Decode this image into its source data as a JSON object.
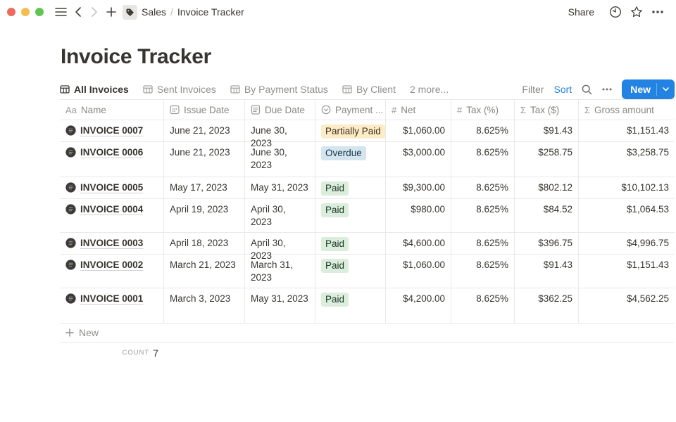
{
  "topbar": {
    "breadcrumb_section": "Sales",
    "breadcrumb_separator": "/",
    "breadcrumb_page": "Invoice Tracker",
    "share_label": "Share"
  },
  "page": {
    "title": "Invoice Tracker"
  },
  "views": {
    "tabs": [
      {
        "label": "All Invoices",
        "active": true
      },
      {
        "label": "Sent Invoices",
        "active": false
      },
      {
        "label": "By Payment Status",
        "active": false
      },
      {
        "label": "By Client",
        "active": false
      }
    ],
    "more_label": "2 more..."
  },
  "actions": {
    "filter_label": "Filter",
    "sort_label": "Sort",
    "more_icon": "ellipsis-icon",
    "search_icon": "search-icon",
    "new_button_label": "New"
  },
  "table": {
    "columns": [
      {
        "id": "name",
        "label": "Name",
        "icon": "text-icon"
      },
      {
        "id": "issue-date",
        "label": "Issue Date",
        "icon": "calendar-icon"
      },
      {
        "id": "due-date",
        "label": "Due Date",
        "icon": "document-icon"
      },
      {
        "id": "payment-status",
        "label": "Payment ...",
        "icon": "select-icon"
      },
      {
        "id": "net",
        "label": "Net",
        "icon": "hash-icon",
        "align": "right"
      },
      {
        "id": "tax-pct",
        "label": "Tax (%)",
        "icon": "hash-icon",
        "align": "right"
      },
      {
        "id": "tax-usd",
        "label": "Tax ($)",
        "icon": "sum-icon",
        "align": "right"
      },
      {
        "id": "gross",
        "label": "Gross amount",
        "icon": "sum-icon",
        "align": "right"
      }
    ],
    "rows": [
      {
        "name": "INVOICE 0007",
        "issue_date": "June 21, 2023",
        "due_date": "June 30, 2023",
        "payment_status": "Partially Paid",
        "status_color": "yellow",
        "net": "$1,060.00",
        "tax_pct": "8.625%",
        "tax_usd": "$91.43",
        "gross": "$1,151.43"
      },
      {
        "name": "INVOICE 0006",
        "issue_date": "June 21, 2023",
        "due_date": "June 30, 2023",
        "payment_status": "Overdue",
        "status_color": "blue",
        "net": "$3,000.00",
        "tax_pct": "8.625%",
        "tax_usd": "$258.75",
        "gross": "$3,258.75"
      },
      {
        "name": "INVOICE 0005",
        "issue_date": "May 17, 2023",
        "due_date": "May 31, 2023",
        "payment_status": "Paid",
        "status_color": "green",
        "net": "$9,300.00",
        "tax_pct": "8.625%",
        "tax_usd": "$802.12",
        "gross": "$10,102.13"
      },
      {
        "name": "INVOICE 0004",
        "issue_date": "April 19, 2023",
        "due_date": "April 30, 2023",
        "payment_status": "Paid",
        "status_color": "green",
        "net": "$980.00",
        "tax_pct": "8.625%",
        "tax_usd": "$84.52",
        "gross": "$1,064.53"
      },
      {
        "name": "INVOICE 0003",
        "issue_date": "April 18, 2023",
        "due_date": "April 30, 2023",
        "payment_status": "Paid",
        "status_color": "green",
        "net": "$4,600.00",
        "tax_pct": "8.625%",
        "tax_usd": "$396.75",
        "gross": "$4,996.75"
      },
      {
        "name": "INVOICE 0002",
        "issue_date": "March 21, 2023",
        "due_date": "March 31, 2023",
        "payment_status": "Paid",
        "status_color": "green",
        "net": "$1,060.00",
        "tax_pct": "8.625%",
        "tax_usd": "$91.43",
        "gross": "$1,151.43"
      },
      {
        "name": "INVOICE 0001",
        "issue_date": "March 3, 2023",
        "due_date": "May 31, 2023",
        "payment_status": "Paid",
        "status_color": "green",
        "net": "$4,200.00",
        "tax_pct": "8.625%",
        "tax_usd": "$362.25",
        "gross": "$4,562.25"
      }
    ],
    "new_row_label": "New",
    "count_label": "count",
    "count_value": "7"
  },
  "colors": {
    "accent_blue": "#2383e2",
    "badge_yellow_bg": "#fdecc8",
    "badge_blue_bg": "#d3e5ef",
    "badge_green_bg": "#dbeddb",
    "traffic_red": "#ee6a5f",
    "traffic_yellow": "#f5bd4f",
    "traffic_green": "#61c554",
    "border": "#e9e9e7",
    "text_dark": "#37352f",
    "text_gray": "#91908d"
  }
}
